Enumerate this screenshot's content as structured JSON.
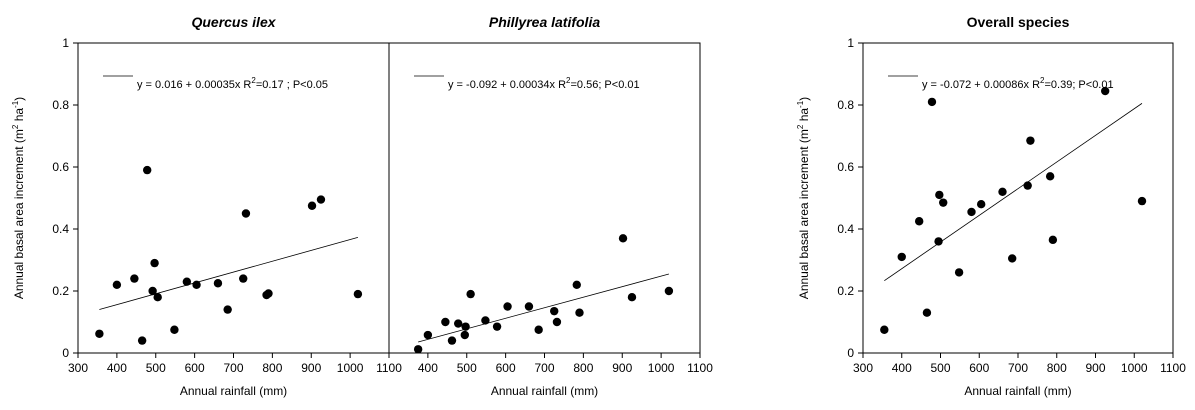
{
  "chart_data": [
    {
      "type": "scatter",
      "title": "Quercus ilex",
      "title_italic": true,
      "xlabel": "Annual rainfall (mm)",
      "ylabel": "Annual basal area increment (m² ha⁻¹)",
      "xlim": [
        300,
        1100
      ],
      "ylim": [
        0,
        1
      ],
      "xticks": [
        "300",
        "400",
        "500",
        "600",
        "700",
        "800",
        "900",
        "1000",
        "1100"
      ],
      "yticks": [
        "0",
        "0.2",
        "0.4",
        "0.6",
        "0.8",
        "1"
      ],
      "show_ylabel": true,
      "show_yticks": true,
      "equation": "y = 0.016 + 0.00035x   R²=0.17 ; P<0.05",
      "fit": {
        "intercept": 0.016,
        "slope": 0.00035,
        "x_range": [
          355,
          1020
        ]
      },
      "series": [
        {
          "x": [
            355,
            400,
            445,
            465,
            478,
            492,
            497,
            505,
            548,
            580,
            605,
            660,
            685,
            725,
            732,
            785,
            790,
            902,
            925,
            1020
          ],
          "y": [
            0.062,
            0.22,
            0.24,
            0.04,
            0.59,
            0.2,
            0.29,
            0.18,
            0.075,
            0.23,
            0.22,
            0.225,
            0.14,
            0.24,
            0.45,
            0.187,
            0.192,
            0.475,
            0.495,
            0.19
          ]
        }
      ]
    },
    {
      "type": "scatter",
      "title": "Phillyrea latifolia",
      "title_italic": true,
      "xlabel": "Annual rainfall (mm)",
      "ylabel": "",
      "xlim": [
        300,
        1100
      ],
      "ylim": [
        0,
        1
      ],
      "xticks": [
        "",
        "400",
        "500",
        "600",
        "700",
        "800",
        "900",
        "1000",
        "1100"
      ],
      "yticks": [],
      "show_ylabel": false,
      "show_yticks": false,
      "equation": "y = -0.092 + 0.00034x   R²=0.56; P<0.01",
      "fit": {
        "intercept": -0.092,
        "slope": 0.00034,
        "x_range": [
          375,
          1020
        ]
      },
      "series": [
        {
          "x": [
            375,
            400,
            445,
            462,
            478,
            495,
            497,
            510,
            548,
            578,
            605,
            660,
            685,
            725,
            732,
            783,
            790,
            902,
            925,
            1020
          ],
          "y": [
            0.012,
            0.058,
            0.1,
            0.04,
            0.095,
            0.058,
            0.085,
            0.19,
            0.105,
            0.085,
            0.15,
            0.15,
            0.075,
            0.135,
            0.1,
            0.22,
            0.13,
            0.37,
            0.18,
            0.2
          ]
        }
      ]
    },
    {
      "type": "scatter",
      "title": "Overall species",
      "title_italic": false,
      "xlabel": "Annual rainfall (mm)",
      "ylabel": "Annual basal area increment (m² ha⁻¹)",
      "xlim": [
        300,
        1100
      ],
      "ylim": [
        0,
        1
      ],
      "xticks": [
        "300",
        "400",
        "500",
        "600",
        "700",
        "800",
        "900",
        "1000",
        "1100"
      ],
      "yticks": [
        "0",
        "0.2",
        "0.4",
        "0.6",
        "0.8",
        "1"
      ],
      "show_ylabel": true,
      "show_yticks": true,
      "equation": "y = -0.072 + 0.00086x   R²=0.39; P<0.01",
      "fit": {
        "intercept": -0.072,
        "slope": 0.00086,
        "x_range": [
          355,
          1020
        ]
      },
      "series": [
        {
          "x": [
            355,
            400,
            445,
            465,
            478,
            495,
            497,
            507,
            548,
            580,
            605,
            660,
            685,
            725,
            732,
            783,
            790,
            925,
            1020
          ],
          "y": [
            0.075,
            0.31,
            0.425,
            0.13,
            0.81,
            0.36,
            0.51,
            0.485,
            0.26,
            0.455,
            0.48,
            0.52,
            0.305,
            0.54,
            0.685,
            0.57,
            0.365,
            0.845,
            0.49
          ]
        }
      ]
    }
  ]
}
